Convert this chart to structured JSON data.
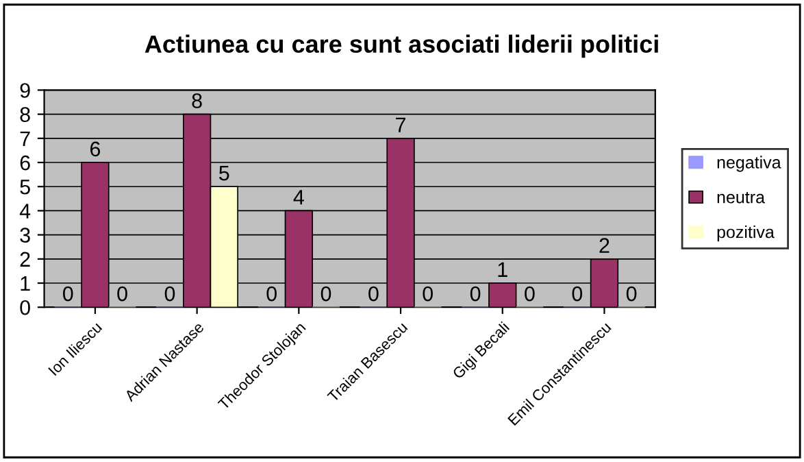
{
  "chart_data": {
    "type": "bar",
    "title": "Actiunea cu care sunt asociati liderii politici",
    "categories": [
      "Ion Iliescu",
      "Adrian Nastase",
      "Theodor Stolojan",
      "Traian Basescu",
      "Gigi Becali",
      "Emil Constantinescu"
    ],
    "series": [
      {
        "name": "negativa",
        "color": "#9999ff",
        "values": [
          0,
          0,
          0,
          0,
          0,
          0
        ]
      },
      {
        "name": "neutra",
        "color": "#993366",
        "values": [
          6,
          8,
          4,
          7,
          1,
          2
        ]
      },
      {
        "name": "pozitiva",
        "color": "#ffffcc",
        "values": [
          0,
          5,
          0,
          0,
          0,
          0
        ]
      }
    ],
    "ylim": [
      0,
      9
    ],
    "yticks": [
      0,
      1,
      2,
      3,
      4,
      5,
      6,
      7,
      8,
      9
    ],
    "grid": "y",
    "legend": "right",
    "data_labels": true
  }
}
